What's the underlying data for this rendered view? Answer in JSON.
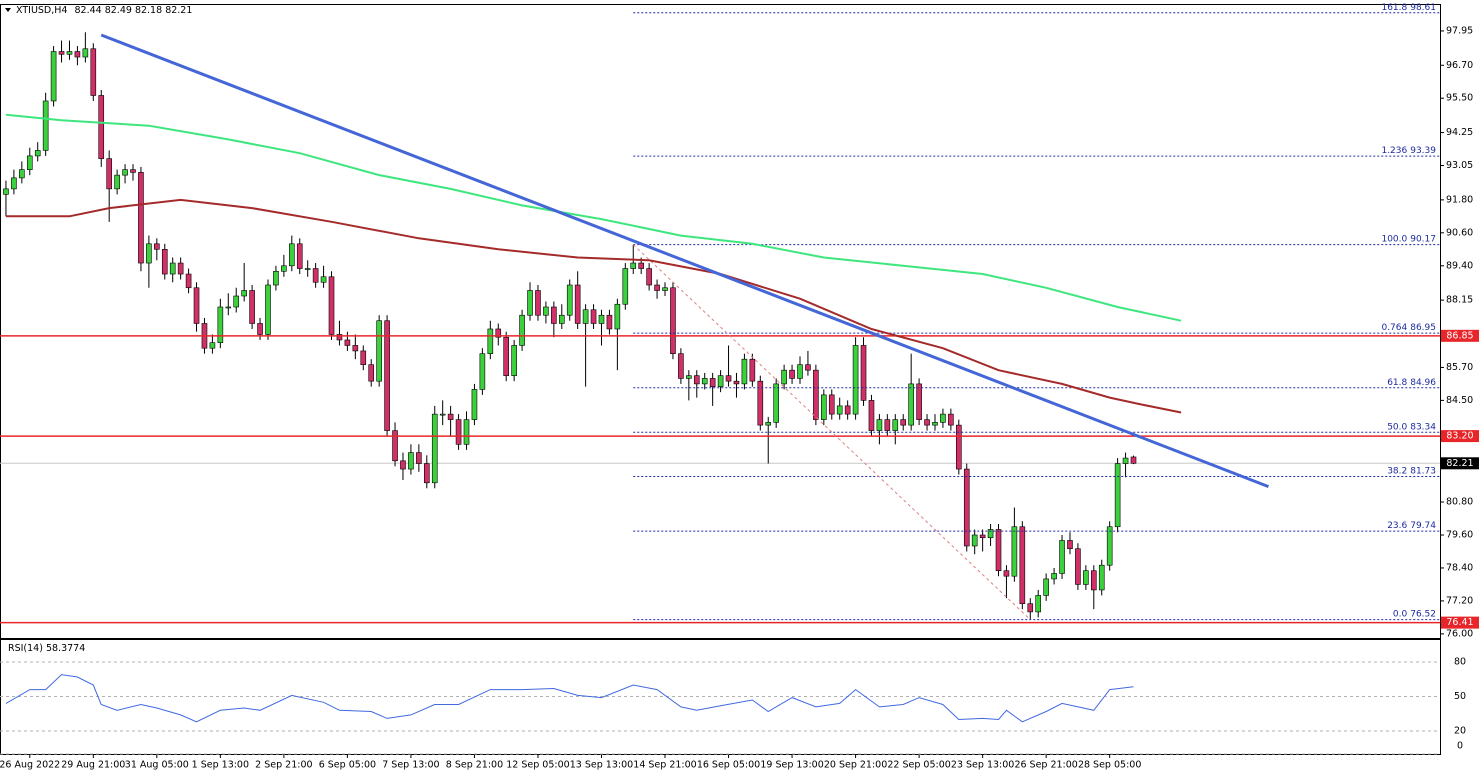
{
  "header": {
    "symbol": "XTIUSD,H4",
    "ohlc": [
      82.44,
      82.49,
      82.18,
      82.21
    ]
  },
  "chart_data": [
    {
      "type": "candlestick",
      "xlim": [
        -0.75,
        180.6
      ],
      "xticks": [
        {
          "value": 3,
          "label": "26 Aug 2022"
        },
        {
          "value": 11,
          "label": "29 Aug 21:00"
        },
        {
          "value": 19,
          "label": "31 Aug 05:00"
        },
        {
          "value": 27,
          "label": "1 Sep 13:00"
        },
        {
          "value": 35,
          "label": "2 Sep 21:00"
        },
        {
          "value": 43,
          "label": "6 Sep 05:00"
        },
        {
          "value": 51,
          "label": "7 Sep 13:00"
        },
        {
          "value": 59,
          "label": "8 Sep 21:00"
        },
        {
          "value": 67,
          "label": "12 Sep 05:00"
        },
        {
          "value": 75,
          "label": "13 Sep 13:00"
        },
        {
          "value": 83,
          "label": "14 Sep 21:00"
        },
        {
          "value": 91,
          "label": "16 Sep 05:00"
        },
        {
          "value": 99,
          "label": "19 Sep 13:00"
        },
        {
          "value": 107,
          "label": "20 Sep 21:00"
        },
        {
          "value": 115,
          "label": "22 Sep 05:00"
        },
        {
          "value": 123,
          "label": "23 Sep 13:00"
        },
        {
          "value": 131,
          "label": "26 Sep 21:00"
        },
        {
          "value": 139,
          "label": "28 Sep 05:00"
        }
      ],
      "ylim": [
        75.85,
        98.93
      ],
      "yticks": [
        97.95,
        {
          "value": 96.7,
          "label": "96.70"
        },
        {
          "value": 95.5,
          "label": "95.50"
        },
        94.25,
        93.05,
        {
          "value": 91.8,
          "label": "91.80"
        },
        {
          "value": 90.6,
          "label": "90.60"
        },
        {
          "value": 89.4,
          "label": "89.40"
        },
        88.15,
        {
          "value": 85.7,
          "label": "85.70"
        },
        {
          "value": 84.5,
          "label": "84.50"
        },
        {
          "value": 80.8,
          "label": "80.80"
        },
        {
          "value": 79.6,
          "label": "79.60"
        },
        {
          "value": 78.4,
          "label": "78.40"
        },
        {
          "value": 77.2,
          "label": "77.20"
        },
        {
          "value": 76,
          "label": "76.00"
        }
      ],
      "up_color": "#3cd13c",
      "down_color": "#d12f68",
      "wick_color": "#000000",
      "candles": [
        [
          92.0,
          92.5,
          91.2,
          92.2
        ],
        [
          92.2,
          92.9,
          92.0,
          92.6
        ],
        [
          92.6,
          93.2,
          92.4,
          92.9
        ],
        [
          92.9,
          93.7,
          92.7,
          93.4
        ],
        [
          93.4,
          93.9,
          93.2,
          93.6
        ],
        [
          93.6,
          95.7,
          93.4,
          95.4
        ],
        [
          95.4,
          97.4,
          95.2,
          97.2
        ],
        [
          97.2,
          97.6,
          96.8,
          97.1
        ],
        [
          97.1,
          97.6,
          96.9,
          97.2
        ],
        [
          97.2,
          97.4,
          96.7,
          97.0
        ],
        [
          97.0,
          97.9,
          96.8,
          97.3
        ],
        [
          97.3,
          97.5,
          95.4,
          95.6
        ],
        [
          95.6,
          95.8,
          93.0,
          93.3
        ],
        [
          93.3,
          93.6,
          91.0,
          92.2
        ],
        [
          92.2,
          92.9,
          92.0,
          92.7
        ],
        [
          92.7,
          93.1,
          92.4,
          92.9
        ],
        [
          92.9,
          93.1,
          92.5,
          92.8
        ],
        [
          92.8,
          93.0,
          89.2,
          89.5
        ],
        [
          89.5,
          90.5,
          88.6,
          90.2
        ],
        [
          90.2,
          90.4,
          89.6,
          90.0
        ],
        [
          90.0,
          90.2,
          88.9,
          89.1
        ],
        [
          89.1,
          89.7,
          88.8,
          89.5
        ],
        [
          89.5,
          89.7,
          88.9,
          89.1
        ],
        [
          89.1,
          89.3,
          88.4,
          88.6
        ],
        [
          88.6,
          88.8,
          87.0,
          87.3
        ],
        [
          87.3,
          87.5,
          86.2,
          86.4
        ],
        [
          86.4,
          86.9,
          86.2,
          86.6
        ],
        [
          86.6,
          88.2,
          86.4,
          87.9
        ],
        [
          87.9,
          88.4,
          87.6,
          87.9
        ],
        [
          87.9,
          88.6,
          87.7,
          88.3
        ],
        [
          88.3,
          89.5,
          88.1,
          88.5
        ],
        [
          88.5,
          88.7,
          87.1,
          87.3
        ],
        [
          87.3,
          87.5,
          86.7,
          86.9
        ],
        [
          86.9,
          88.9,
          86.7,
          88.7
        ],
        [
          88.7,
          89.4,
          88.5,
          89.2
        ],
        [
          89.2,
          89.8,
          89.0,
          89.4
        ],
        [
          89.4,
          90.5,
          89.2,
          90.2
        ],
        [
          90.2,
          90.4,
          89.1,
          89.3
        ],
        [
          89.3,
          89.6,
          89.0,
          89.3
        ],
        [
          89.3,
          89.5,
          88.6,
          88.8
        ],
        [
          88.8,
          89.4,
          88.6,
          89.0
        ],
        [
          89.0,
          89.2,
          86.7,
          86.9
        ],
        [
          86.9,
          87.4,
          86.5,
          86.7
        ],
        [
          86.7,
          87.0,
          86.3,
          86.5
        ],
        [
          86.5,
          86.9,
          86.0,
          86.3
        ],
        [
          86.3,
          86.5,
          85.6,
          85.8
        ],
        [
          85.8,
          86.0,
          85.0,
          85.2
        ],
        [
          85.2,
          87.6,
          85.0,
          87.4
        ],
        [
          87.4,
          87.6,
          83.2,
          83.4
        ],
        [
          83.4,
          83.7,
          82.1,
          82.3
        ],
        [
          82.3,
          82.6,
          81.6,
          82.0
        ],
        [
          82.0,
          82.9,
          81.8,
          82.6
        ],
        [
          82.6,
          82.9,
          81.9,
          82.2
        ],
        [
          82.2,
          82.5,
          81.3,
          81.5
        ],
        [
          81.5,
          84.3,
          81.3,
          84.0
        ],
        [
          84.0,
          84.5,
          83.6,
          84.0
        ],
        [
          84.0,
          84.3,
          83.2,
          83.8
        ],
        [
          83.8,
          84.0,
          82.7,
          82.9
        ],
        [
          82.9,
          84.1,
          82.7,
          83.8
        ],
        [
          83.8,
          85.1,
          83.6,
          84.9
        ],
        [
          84.9,
          86.4,
          84.7,
          86.2
        ],
        [
          86.2,
          87.4,
          86.0,
          87.1
        ],
        [
          87.1,
          87.3,
          86.5,
          86.8
        ],
        [
          86.8,
          87.0,
          85.2,
          85.4
        ],
        [
          85.4,
          86.7,
          85.2,
          86.5
        ],
        [
          86.5,
          87.8,
          86.3,
          87.6
        ],
        [
          87.6,
          88.8,
          87.4,
          88.5
        ],
        [
          88.5,
          88.7,
          87.4,
          87.6
        ],
        [
          87.6,
          88.1,
          87.3,
          87.9
        ],
        [
          87.9,
          88.1,
          86.8,
          87.3
        ],
        [
          87.3,
          88.0,
          87.1,
          87.6
        ],
        [
          87.6,
          88.9,
          87.4,
          88.7
        ],
        [
          88.7,
          89.2,
          87.1,
          87.3
        ],
        [
          87.3,
          88.0,
          85.0,
          87.8
        ],
        [
          87.8,
          88.0,
          87.1,
          87.3
        ],
        [
          87.3,
          87.8,
          86.5,
          87.6
        ],
        [
          87.6,
          87.8,
          86.9,
          87.1
        ],
        [
          87.1,
          88.2,
          85.6,
          88.0
        ],
        [
          88.0,
          89.5,
          87.8,
          89.3
        ],
        [
          89.3,
          90.17,
          89.1,
          89.5
        ],
        [
          89.5,
          89.7,
          89.1,
          89.3
        ],
        [
          89.3,
          89.5,
          88.5,
          88.7
        ],
        [
          88.7,
          88.9,
          88.2,
          88.5
        ],
        [
          88.5,
          88.8,
          88.3,
          88.6
        ],
        [
          88.6,
          88.8,
          86.0,
          86.2
        ],
        [
          86.2,
          86.4,
          85.1,
          85.3
        ],
        [
          85.3,
          85.6,
          84.5,
          85.4
        ],
        [
          85.4,
          85.6,
          84.6,
          85.1
        ],
        [
          85.1,
          85.5,
          84.9,
          85.3
        ],
        [
          85.3,
          85.5,
          84.3,
          85.0
        ],
        [
          85.0,
          85.6,
          84.8,
          85.4
        ],
        [
          85.4,
          86.5,
          85.0,
          85.2
        ],
        [
          85.2,
          85.5,
          84.6,
          85.1
        ],
        [
          85.1,
          86.2,
          84.9,
          86.0
        ],
        [
          86.0,
          86.2,
          85.0,
          85.2
        ],
        [
          85.2,
          85.4,
          83.4,
          83.6
        ],
        [
          83.6,
          83.9,
          82.2,
          83.7
        ],
        [
          83.7,
          85.3,
          83.5,
          85.1
        ],
        [
          85.1,
          85.8,
          84.9,
          85.6
        ],
        [
          85.6,
          85.8,
          85.1,
          85.3
        ],
        [
          85.3,
          86.1,
          85.1,
          85.8
        ],
        [
          85.8,
          86.3,
          85.4,
          85.6
        ],
        [
          85.6,
          85.8,
          83.6,
          83.8
        ],
        [
          83.8,
          84.9,
          83.6,
          84.7
        ],
        [
          84.7,
          84.9,
          83.8,
          84.0
        ],
        [
          84.0,
          84.6,
          83.8,
          84.3
        ],
        [
          84.3,
          84.5,
          83.8,
          84.0
        ],
        [
          84.0,
          86.8,
          83.8,
          86.5
        ],
        [
          86.5,
          86.8,
          84.3,
          84.5
        ],
        [
          84.5,
          84.7,
          83.2,
          83.4
        ],
        [
          83.4,
          84.0,
          82.9,
          83.8
        ],
        [
          83.8,
          84.0,
          83.2,
          83.4
        ],
        [
          83.4,
          84.0,
          82.9,
          83.8
        ],
        [
          83.8,
          84.0,
          83.4,
          83.6
        ],
        [
          83.6,
          86.2,
          83.4,
          85.1
        ],
        [
          85.1,
          85.3,
          83.6,
          83.8
        ],
        [
          83.8,
          84.0,
          83.4,
          83.6
        ],
        [
          83.6,
          84.0,
          83.4,
          83.7
        ],
        [
          83.7,
          84.2,
          83.5,
          84.0
        ],
        [
          84.0,
          84.2,
          83.4,
          83.6
        ],
        [
          83.6,
          83.8,
          81.8,
          82.0
        ],
        [
          82.0,
          82.2,
          79.0,
          79.2
        ],
        [
          79.2,
          79.8,
          78.9,
          79.6
        ],
        [
          79.6,
          79.8,
          79.0,
          79.5
        ],
        [
          79.5,
          80.0,
          79.2,
          79.8
        ],
        [
          79.8,
          80.0,
          78.1,
          78.3
        ],
        [
          78.3,
          78.5,
          77.3,
          78.1
        ],
        [
          78.1,
          80.6,
          77.9,
          79.9
        ],
        [
          79.9,
          80.1,
          76.9,
          77.1
        ],
        [
          77.1,
          77.3,
          76.52,
          76.8
        ],
        [
          76.8,
          77.6,
          76.6,
          77.4
        ],
        [
          77.4,
          78.2,
          77.2,
          78.0
        ],
        [
          78.0,
          78.4,
          77.8,
          78.2
        ],
        [
          78.2,
          79.6,
          78.0,
          79.4
        ],
        [
          79.4,
          79.7,
          78.9,
          79.1
        ],
        [
          79.1,
          79.3,
          77.6,
          77.8
        ],
        [
          77.8,
          78.5,
          77.6,
          78.3
        ],
        [
          78.3,
          78.5,
          76.9,
          77.6
        ],
        [
          77.6,
          78.7,
          77.4,
          78.5
        ],
        [
          78.5,
          80.1,
          78.3,
          79.9
        ],
        [
          79.9,
          82.4,
          79.7,
          82.2
        ],
        [
          82.2,
          82.6,
          81.7,
          82.4
        ],
        [
          82.44,
          82.49,
          82.18,
          82.21
        ]
      ],
      "lines": [
        {
          "x": [
            0,
            8,
            13,
            22,
            31,
            41,
            52,
            62,
            72,
            81,
            90,
            100,
            109,
            118,
            125,
            133,
            139,
            143,
            148
          ],
          "values": [
            91.2,
            91.2,
            91.5,
            91.8,
            91.5,
            91.0,
            90.4,
            90.0,
            89.7,
            89.6,
            89.1,
            88.2,
            87.1,
            86.4,
            85.6,
            85.1,
            84.6,
            84.35,
            84.06
          ],
          "color": "#a52a2a",
          "width": 2
        },
        {
          "x": [
            0,
            7,
            18,
            28,
            37,
            47,
            56,
            65,
            75,
            85,
            94,
            103,
            113,
            123,
            131,
            140,
            148
          ],
          "values": [
            94.9,
            94.7,
            94.5,
            94.0,
            93.5,
            92.7,
            92.2,
            91.6,
            91.1,
            90.5,
            90.2,
            89.7,
            89.4,
            89.1,
            88.6,
            87.9,
            87.4
          ],
          "color": "#3ee67e",
          "width": 2
        },
        {
          "x": [
            12,
            159
          ],
          "values": [
            97.8,
            81.36
          ],
          "color": "#4466d6",
          "width": 3
        }
      ],
      "diagonal": {
        "x": [
          79,
          129
        ],
        "values": [
          90.17,
          76.52
        ],
        "color": "#e08080"
      },
      "fib": {
        "x": 79,
        "color": "#1c2aa0",
        "levels": [
          {
            "label": "161.8",
            "value": 98.61
          },
          {
            "label": "1.236",
            "value": 93.39
          },
          {
            "label": "100.0",
            "value": 90.17
          },
          {
            "label": "0.764",
            "value": 86.95
          },
          {
            "label": "61.8",
            "value": 84.96
          },
          {
            "label": "50.0",
            "value": 83.34
          },
          {
            "label": "38.2",
            "value": 81.73
          },
          {
            "label": "23.6",
            "value": 79.74
          },
          {
            "label": "0.0",
            "value": 76.52
          }
        ]
      },
      "levels": [
        {
          "value": 86.85,
          "color": "#e8262a"
        },
        {
          "value": {
            "value": 83.2,
            "label": "83.20"
          },
          "color": "#e8262a"
        },
        {
          "value": 76.41,
          "color": "#e8262a"
        }
      ],
      "price": {
        "value": 82.21,
        "color": "#000000"
      }
    },
    {
      "type": "line",
      "title": "RSI(14)",
      "current": 58.3774,
      "color": "#4169e1",
      "xlim": [
        -0.75,
        180.6
      ],
      "ylim": [
        0,
        100
      ],
      "yticks": [
        0,
        20,
        50,
        80
      ],
      "x": [
        0,
        3,
        5,
        7,
        9,
        11,
        12,
        14,
        17,
        19,
        22,
        24,
        27,
        30,
        32,
        36,
        40,
        42,
        46,
        48,
        51,
        54,
        57,
        61,
        65,
        69,
        72,
        75,
        79,
        82,
        85,
        87,
        90,
        94,
        96,
        99,
        102,
        105,
        107,
        110,
        113,
        115,
        118,
        120,
        123,
        125,
        126,
        128,
        131,
        133,
        137,
        139,
        142
      ],
      "values": [
        44,
        56,
        56,
        69,
        67,
        60,
        43,
        38,
        43,
        40,
        34,
        28,
        38,
        40,
        38,
        51,
        45,
        38,
        37,
        31,
        34,
        43,
        43,
        56,
        56,
        57,
        51,
        49,
        60,
        56,
        41,
        38,
        42,
        47,
        37,
        49,
        41,
        44,
        56,
        41,
        43,
        49,
        43,
        30,
        31,
        30,
        38,
        28,
        37,
        44,
        38,
        56,
        58.4
      ]
    }
  ]
}
